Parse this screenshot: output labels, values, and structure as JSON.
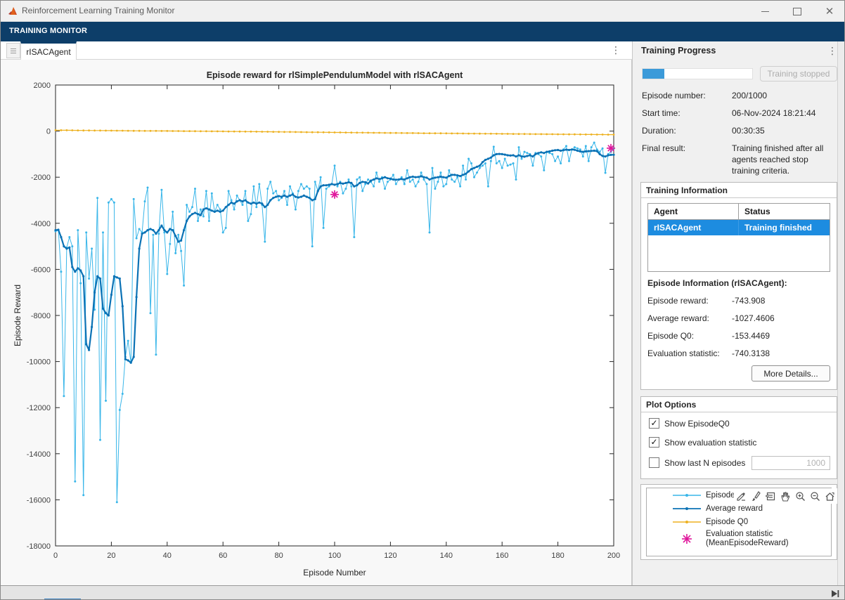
{
  "window": {
    "title": "Reinforcement Learning Training Monitor",
    "controls": {
      "minimize": "minimize",
      "maximize": "maximize",
      "close": "✕"
    }
  },
  "ribbon": {
    "tab_label": "TRAINING MONITOR"
  },
  "document_tabs": {
    "active_tab": "rISACAgent"
  },
  "chart_data": {
    "type": "line",
    "title": "Episode reward for rlSimplePendulumModel with rlSACAgent",
    "xlabel": "Episode Number",
    "ylabel": "Episode Reward",
    "xlim": [
      0,
      200
    ],
    "ylim": [
      -18000,
      2000
    ],
    "xtick_step": 20,
    "ytick_step": 2000,
    "grid": false,
    "legend_position": "bottom-right-panel",
    "series": [
      {
        "name": "Episode reward",
        "color": "#39B6E9",
        "line_width": 1,
        "values": [
          -4350,
          -4300,
          -6100,
          -11500,
          -5050,
          -4600,
          -5000,
          -15200,
          -4300,
          -6600,
          -15800,
          -4400,
          -6400,
          -5100,
          -7750,
          -2900,
          -13400,
          -4400,
          -11700,
          -3100,
          -2950,
          -3100,
          -16100,
          -12100,
          -11400,
          -9800,
          -9100,
          -10050,
          -2950,
          -4650,
          -4250,
          -4400,
          -3050,
          -2450,
          -7900,
          -4500,
          -9700,
          -4450,
          -2550,
          -4400,
          -6200,
          -4900,
          -3500,
          -5300,
          -4500,
          -5200,
          -6700,
          -3200,
          -3500,
          -3300,
          -2500,
          -3900,
          -3400,
          -3700,
          -2600,
          -3900,
          -2700,
          -3500,
          -3200,
          -3400,
          -4400,
          -4200,
          -2600,
          -3000,
          -3400,
          -2800,
          -3000,
          -3200,
          -2600,
          -3900,
          -3600,
          -2400,
          -3300,
          -2300,
          -3200,
          -4800,
          -2500,
          -2200,
          -2700,
          -2600,
          -3000,
          -2900,
          -2600,
          -3200,
          -2400,
          -2700,
          -3400,
          -2600,
          -2300,
          -2500,
          -2400,
          -2500,
          -5000,
          -2200,
          -2600,
          -2000,
          -4200,
          -2500,
          -2400,
          -2300,
          -1500,
          -2400,
          -2200,
          -2700,
          -2500,
          -2100,
          -2400,
          -4600,
          -2100,
          -2000,
          -2600,
          -2300,
          -2100,
          -2200,
          -2400,
          -1800,
          -2200,
          -2000,
          -2500,
          -2200,
          -2100,
          -1900,
          -2300,
          -2100,
          -2000,
          -2300,
          -1700,
          -2200,
          -2100,
          -2400,
          -2200,
          -1800,
          -2100,
          -2300,
          -4400,
          -1600,
          -2500,
          -2200,
          -1800,
          -2400,
          -2300,
          -1700,
          -2100,
          -2200,
          -2000,
          -2400,
          -1500,
          -2100,
          -1200,
          -1400,
          -2000,
          -1800,
          -1600,
          -1500,
          -1400,
          -2400,
          -1300,
          -680,
          -1400,
          -1300,
          -1600,
          -1200,
          -1500,
          -1450,
          -1400,
          -2100,
          -700,
          -1200,
          -900,
          -950,
          -1000,
          -1500,
          -950,
          -1000,
          -1100,
          -1700,
          -900,
          -950,
          -1000,
          -1300,
          -1100,
          -1400,
          -800,
          -650,
          -1300,
          -800,
          -700,
          -750,
          -800,
          -1100,
          -650,
          -1300,
          -700,
          -500,
          -800,
          -900,
          -750,
          -1810,
          -1000,
          -900,
          -743.908
        ]
      },
      {
        "name": "Average reward",
        "color": "#0B72B5",
        "line_width": 2.2,
        "values": [
          -4300,
          -4280,
          -4600,
          -5000,
          -5100,
          -5050,
          -5900,
          -6100,
          -5950,
          -6050,
          -6300,
          -9250,
          -9500,
          -8500,
          -7000,
          -6300,
          -6400,
          -7700,
          -7900,
          -8000,
          -7100,
          -6300,
          -6350,
          -6400,
          -7600,
          -9900,
          -9950,
          -10050,
          -9800,
          -7200,
          -5100,
          -4450,
          -4400,
          -4300,
          -4250,
          -4300,
          -4450,
          -4300,
          -4100,
          -4300,
          -4400,
          -4250,
          -4300,
          -4550,
          -4800,
          -4750,
          -4300,
          -3900,
          -3700,
          -3600,
          -3550,
          -3600,
          -3650,
          -3400,
          -3350,
          -3400,
          -3450,
          -3500,
          -3450,
          -3500,
          -3450,
          -3300,
          -3200,
          -3100,
          -3150,
          -3050,
          -3000,
          -3050,
          -3000,
          -3100,
          -3150,
          -3100,
          -3150,
          -3100,
          -3150,
          -3300,
          -3200,
          -3000,
          -2900,
          -2850,
          -2820,
          -2850,
          -2800,
          -2850,
          -2800,
          -2750,
          -2850,
          -2880,
          -2850,
          -2800,
          -2850,
          -2900,
          -3000,
          -2950,
          -2600,
          -2400,
          -2350,
          -2350,
          -2330,
          -2300,
          -2330,
          -2300,
          -2250,
          -2280,
          -2250,
          -2220,
          -2250,
          -2400,
          -2350,
          -2250,
          -2200,
          -2220,
          -2270,
          -2150,
          -2100,
          -2050,
          -2080,
          -2050,
          -2000,
          -2050,
          -2060,
          -2100,
          -2110,
          -2100,
          -2080,
          -2100,
          -2050,
          -2000,
          -1980,
          -2000,
          -1990,
          -1960,
          -2000,
          -2020,
          -2100,
          -2050,
          -2020,
          -2000,
          -1980,
          -2000,
          -2020,
          -1950,
          -1900,
          -1900,
          -1920,
          -1950,
          -1900,
          -1850,
          -1750,
          -1650,
          -1600,
          -1550,
          -1500,
          -1350,
          -1250,
          -1200,
          -1150,
          -1050,
          -1000,
          -990,
          -1000,
          -1020,
          -1050,
          -1060,
          -1050,
          -1100,
          -1050,
          -1100,
          -1110,
          -1080,
          -1050,
          -1100,
          -1000,
          -950,
          -920,
          -950,
          -900,
          -880,
          -850,
          -830,
          -820,
          -850,
          -830,
          -805,
          -820,
          -800,
          -810,
          -850,
          -880,
          -900,
          -880,
          -870,
          -860,
          -850,
          -870,
          -1000,
          -1080,
          -1100,
          -1050,
          -1030,
          -1027.4606
        ]
      },
      {
        "name": "Episode Q0",
        "color": "#EDB120",
        "line_width": 1.2,
        "x_sampled": [
          0,
          10,
          20,
          30,
          40,
          50,
          60,
          70,
          80,
          90,
          100,
          110,
          120,
          130,
          140,
          150,
          160,
          170,
          180,
          190,
          200
        ],
        "values": [
          40,
          28,
          20,
          12,
          5,
          -3,
          -12,
          -22,
          -33,
          -45,
          -57,
          -68,
          -78,
          -88,
          -98,
          -108,
          -118,
          -128,
          -136,
          -145,
          -153.4469
        ]
      }
    ],
    "eval_points": {
      "name": "Evaluation statistic (MeanEpisodeReward)",
      "color": "#E0189C",
      "marker": "asterisk",
      "points": [
        {
          "episode": 100,
          "value": -2750
        },
        {
          "episode": 200,
          "value": -740.3138
        }
      ]
    }
  },
  "training_progress": {
    "header": "Training Progress",
    "progress_percent": 20,
    "stop_button_label": "Training stopped",
    "rows": [
      {
        "label": "Episode number:",
        "value": "200/1000"
      },
      {
        "label": "Start time:",
        "value": "06-Nov-2024 18:21:44"
      },
      {
        "label": "Duration:",
        "value": "00:30:35"
      },
      {
        "label": "Final result:",
        "value": "Training finished after all agents reached stop training criteria."
      }
    ]
  },
  "training_information": {
    "header": "Training Information",
    "table": {
      "columns": [
        "Agent",
        "Status"
      ],
      "rows": [
        {
          "agent": "rISACAgent",
          "status": "Training finished",
          "selected": true
        }
      ]
    },
    "episode_info_title": "Episode Information (rISACAgent):",
    "rows": [
      {
        "label": "Episode reward:",
        "value": "-743.908"
      },
      {
        "label": "Average reward:",
        "value": "-1027.4606"
      },
      {
        "label": "Episode Q0:",
        "value": "-153.4469"
      },
      {
        "label": "Evaluation statistic:",
        "value": "-740.3138"
      }
    ],
    "more_details_label": "More Details..."
  },
  "plot_options": {
    "header": "Plot Options",
    "items": [
      {
        "label": "Show EpisodeQ0",
        "checked": true
      },
      {
        "label": "Show evaluation statistic",
        "checked": true
      },
      {
        "label": "Show last N episodes",
        "checked": false
      }
    ],
    "last_n_value": "1000",
    "check_glyph": "✓"
  },
  "legend": {
    "items": [
      {
        "label": "Episode reward",
        "color": "#39B6E9",
        "marker": "line-dot"
      },
      {
        "label": "Average reward",
        "color": "#0B72B5",
        "marker": "line-dot"
      },
      {
        "label": "Episode Q0",
        "color": "#EDB120",
        "marker": "line-dot"
      },
      {
        "label": "Evaluation statistic",
        "label2": "(MeanEpisodeReward)",
        "color": "#E0189C",
        "marker": "asterisk"
      }
    ]
  },
  "axes_toolbar": {
    "icons": [
      "export",
      "brush",
      "datatip",
      "pan",
      "zoom-in",
      "zoom-out",
      "restore-view"
    ]
  },
  "colors": {
    "ribbon": "#0D3E69",
    "selected_row": "#1D8CE0",
    "progress_fill": "#3B9AD9"
  }
}
